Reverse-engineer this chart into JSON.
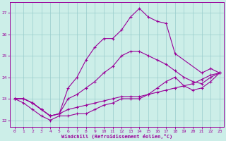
{
  "xlabel": "Windchill (Refroidissement éolien,°C)",
  "bg_color": "#cceee8",
  "grid_color": "#99cccc",
  "line_color": "#990099",
  "ylim": [
    21.7,
    27.5
  ],
  "xlim": [
    -0.5,
    23.5
  ],
  "yticks": [
    22,
    23,
    24,
    25,
    26,
    27
  ],
  "xticks": [
    0,
    1,
    2,
    3,
    4,
    5,
    6,
    7,
    8,
    9,
    10,
    11,
    12,
    13,
    14,
    15,
    16,
    17,
    18,
    19,
    20,
    21,
    22,
    23
  ],
  "line1_x": [
    0,
    1,
    2,
    3,
    4,
    5,
    6,
    7,
    8,
    9,
    10,
    11,
    12,
    13,
    14,
    15,
    16,
    17,
    18,
    19,
    20,
    21,
    22,
    23
  ],
  "line1_y": [
    23.0,
    23.0,
    22.8,
    22.5,
    22.2,
    22.3,
    22.5,
    22.6,
    22.7,
    22.8,
    22.9,
    23.0,
    23.1,
    23.1,
    23.1,
    23.2,
    23.3,
    23.4,
    23.5,
    23.6,
    23.7,
    23.9,
    24.1,
    24.2
  ],
  "line2_x": [
    0,
    1,
    2,
    3,
    4,
    5,
    6,
    7,
    8,
    9,
    10,
    11,
    12,
    13,
    14,
    15,
    16,
    17,
    18,
    19,
    20,
    21,
    22,
    23
  ],
  "line2_y": [
    23.0,
    23.0,
    22.8,
    22.5,
    22.2,
    22.3,
    23.0,
    23.2,
    23.5,
    23.8,
    24.2,
    24.5,
    25.0,
    25.2,
    25.2,
    25.0,
    24.8,
    24.6,
    24.3,
    24.0,
    23.8,
    23.7,
    24.0,
    24.2
  ],
  "line3_x": [
    0,
    1,
    2,
    3,
    4,
    5,
    6,
    7,
    8,
    9,
    10,
    11,
    12,
    13,
    14,
    15,
    16,
    17,
    18,
    21,
    22,
    23
  ],
  "line3_y": [
    23.0,
    23.0,
    22.8,
    22.5,
    22.2,
    22.3,
    23.5,
    24.0,
    24.8,
    25.4,
    25.8,
    25.8,
    26.2,
    26.8,
    27.2,
    26.8,
    26.6,
    26.5,
    25.1,
    24.2,
    24.4,
    24.2
  ],
  "line4_x": [
    0,
    1,
    2,
    3,
    4,
    5,
    6,
    7,
    8,
    9,
    10,
    11,
    12,
    13,
    14,
    15,
    16,
    17,
    18,
    19,
    20,
    21,
    22,
    23
  ],
  "line4_y": [
    23.0,
    22.8,
    22.5,
    22.2,
    22.0,
    22.2,
    22.2,
    22.3,
    22.3,
    22.5,
    22.7,
    22.8,
    23.0,
    23.0,
    23.0,
    23.2,
    23.5,
    23.8,
    24.0,
    23.6,
    23.4,
    23.5,
    23.8,
    24.2
  ]
}
